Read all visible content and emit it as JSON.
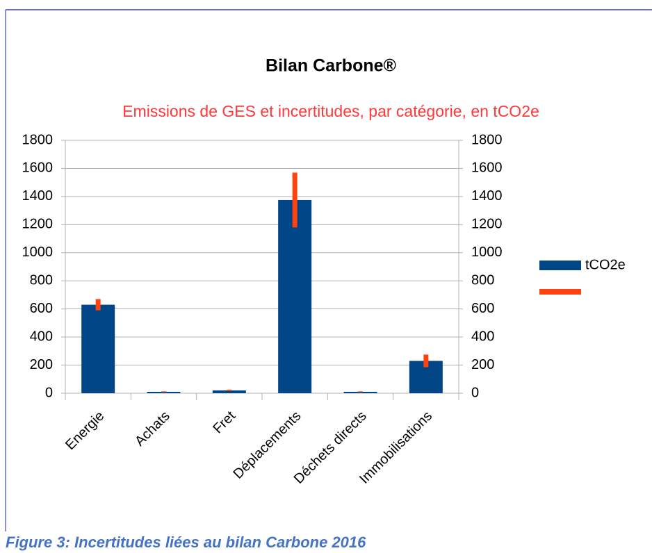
{
  "chart_data": {
    "type": "bar",
    "title": "Bilan Carbone®",
    "subtitle": "Emissions de GES et incertitudes, par catégorie, en tCO2e",
    "categories": [
      "Energie",
      "Achats",
      "Fret",
      "Déplacements",
      "Déchets directs",
      "Immobilisations"
    ],
    "series": [
      {
        "name": "tCO2e",
        "color": "#004586",
        "values": [
          630,
          10,
          20,
          1375,
          10,
          230
        ],
        "errors": [
          40,
          3,
          5,
          195,
          3,
          45
        ],
        "error_color": "#ff420e"
      }
    ],
    "ylim": [
      0,
      1800
    ],
    "yticks": [
      0,
      200,
      400,
      600,
      800,
      1000,
      1200,
      1400,
      1600,
      1800
    ],
    "y2lim": [
      0,
      1800
    ],
    "y2ticks": [
      0,
      200,
      400,
      600,
      800,
      1000,
      1200,
      1400,
      1600,
      1800
    ],
    "grid": true,
    "legend": "right"
  },
  "caption": "Figure 3: Incertitudes liées au bilan Carbone 2016"
}
